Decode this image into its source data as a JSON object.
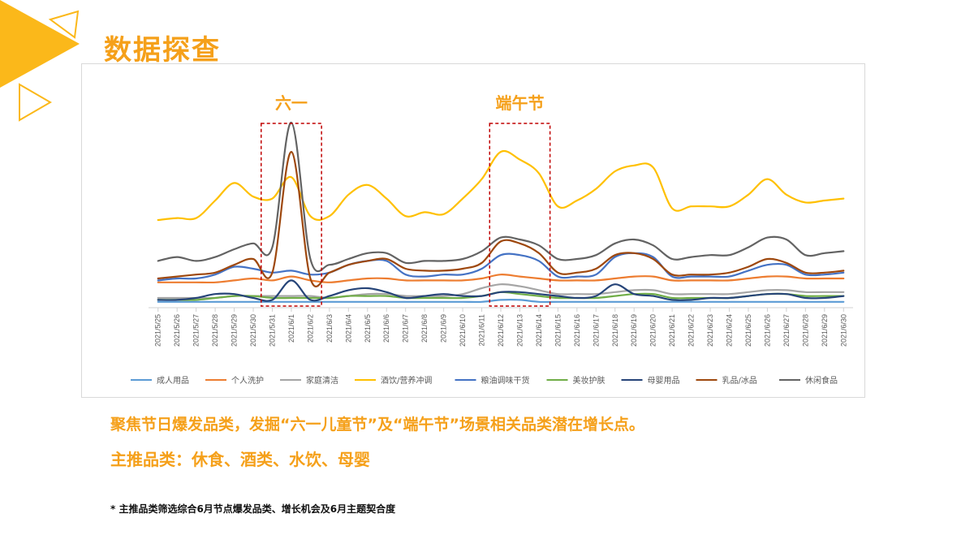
{
  "page": {
    "title": "数据探查",
    "headline": "聚焦节日爆发品类，发掘“六一儿童节”及“端午节”场景相关品类潜在增长点。",
    "subline": "主推品类：休食、酒类、水饮、母婴",
    "footnote": "* 主推品类筛选综合6月节点爆发品类、增长机会及6月主题契合度"
  },
  "colors": {
    "accent": "#f5a01a",
    "highlight_box": "#c00000"
  },
  "chart_data": {
    "type": "line",
    "title": "",
    "xlabel": "",
    "ylabel": "",
    "grid": false,
    "legend_position": "bottom",
    "ylim": [
      0,
      100
    ],
    "categories": [
      "2021/5/25",
      "2021/5/26",
      "2021/5/27",
      "2021/5/28",
      "2021/5/29",
      "2021/5/30",
      "2021/5/31",
      "2021/6/1",
      "2021/6/2",
      "2021/6/3",
      "2021/6/4",
      "2021/6/5",
      "2021/6/6",
      "2021/6/7",
      "2021/6/8",
      "2021/6/9",
      "2021/6/10",
      "2021/6/11",
      "2021/6/12",
      "2021/6/13",
      "2021/6/14",
      "2021/6/15",
      "2021/6/16",
      "2021/6/17",
      "2021/6/18",
      "2021/6/19",
      "2021/6/20",
      "2021/6/21",
      "2021/6/22",
      "2021/6/23",
      "2021/6/24",
      "2021/6/25",
      "2021/6/26",
      "2021/6/27",
      "2021/6/28",
      "2021/6/29",
      "2021/6/30"
    ],
    "series": [
      {
        "name": "成人用品",
        "color": "#5b9bd5",
        "values": [
          3,
          3,
          3,
          3,
          3,
          3,
          3,
          3,
          3,
          3,
          3,
          3,
          3,
          3,
          3,
          3,
          3,
          3,
          4,
          4,
          3,
          3,
          3,
          3,
          3,
          3,
          3,
          3,
          3,
          3,
          3,
          3,
          3,
          3,
          3,
          3,
          3
        ]
      },
      {
        "name": "个人洗护",
        "color": "#ed7d31",
        "values": [
          13,
          13,
          13,
          13,
          14,
          15,
          14,
          16,
          14,
          13,
          14,
          15,
          15,
          14,
          14,
          14,
          14,
          15,
          17,
          16,
          15,
          14,
          14,
          14,
          15,
          16,
          16,
          14,
          14,
          14,
          14,
          15,
          16,
          16,
          15,
          15,
          15
        ]
      },
      {
        "name": "家庭清洁",
        "color": "#a5a5a5",
        "values": [
          5,
          5,
          5,
          5,
          6,
          6,
          6,
          6,
          6,
          5,
          6,
          7,
          7,
          6,
          6,
          6,
          7,
          10,
          12,
          11,
          9,
          7,
          7,
          7,
          8,
          9,
          9,
          7,
          7,
          7,
          7,
          8,
          9,
          9,
          8,
          8,
          8
        ]
      },
      {
        "name": "酒饮/营养冲调",
        "color": "#ffc000",
        "values": [
          45,
          46,
          46,
          55,
          64,
          57,
          56,
          67,
          47,
          47,
          58,
          63,
          56,
          47,
          49,
          48,
          56,
          66,
          80,
          76,
          69,
          52,
          55,
          61,
          70,
          73,
          72,
          51,
          52,
          52,
          52,
          58,
          66,
          58,
          54,
          55,
          56
        ]
      },
      {
        "name": "粮油调味干货",
        "color": "#4472c4",
        "values": [
          14,
          15,
          15,
          17,
          21,
          20,
          18,
          19,
          17,
          18,
          22,
          24,
          24,
          17,
          16,
          17,
          17,
          20,
          27,
          27,
          24,
          16,
          16,
          17,
          26,
          28,
          26,
          16,
          16,
          16,
          16,
          19,
          22,
          22,
          17,
          17,
          18
        ]
      },
      {
        "name": "美妆护肤",
        "color": "#70ad47",
        "values": [
          4,
          4,
          4,
          5,
          6,
          6,
          5,
          5,
          5,
          5,
          6,
          6,
          6,
          5,
          5,
          5,
          5,
          6,
          8,
          7,
          6,
          5,
          5,
          5,
          6,
          7,
          7,
          5,
          5,
          5,
          5,
          6,
          7,
          7,
          6,
          6,
          6
        ]
      },
      {
        "name": "母婴用品",
        "color": "#264478",
        "values": [
          4,
          4,
          5,
          7,
          7,
          5,
          4,
          14,
          4,
          6,
          9,
          10,
          8,
          5,
          6,
          7,
          6,
          6,
          8,
          8,
          7,
          6,
          5,
          6,
          12,
          7,
          6,
          4,
          4,
          5,
          5,
          6,
          7,
          7,
          5,
          5,
          6
        ]
      },
      {
        "name": "乳品/冰品",
        "color": "#9e480e",
        "values": [
          15,
          16,
          17,
          18,
          22,
          25,
          18,
          80,
          15,
          18,
          22,
          24,
          25,
          20,
          19,
          19,
          20,
          23,
          34,
          33,
          28,
          18,
          18,
          20,
          27,
          28,
          25,
          17,
          17,
          17,
          18,
          21,
          25,
          23,
          18,
          18,
          19
        ]
      },
      {
        "name": "休闲食品",
        "color": "#636363",
        "values": [
          24,
          26,
          24,
          26,
          30,
          33,
          31,
          95,
          25,
          22,
          25,
          28,
          28,
          23,
          24,
          24,
          25,
          29,
          36,
          35,
          32,
          25,
          25,
          27,
          33,
          35,
          32,
          25,
          26,
          27,
          27,
          31,
          36,
          35,
          27,
          28,
          29
        ]
      }
    ],
    "annotations": [
      {
        "label": "六一",
        "start": "2021/5/31",
        "end": "2021/6/2"
      },
      {
        "label": "端午节",
        "start": "2021/6/12",
        "end": "2021/6/14"
      }
    ]
  }
}
